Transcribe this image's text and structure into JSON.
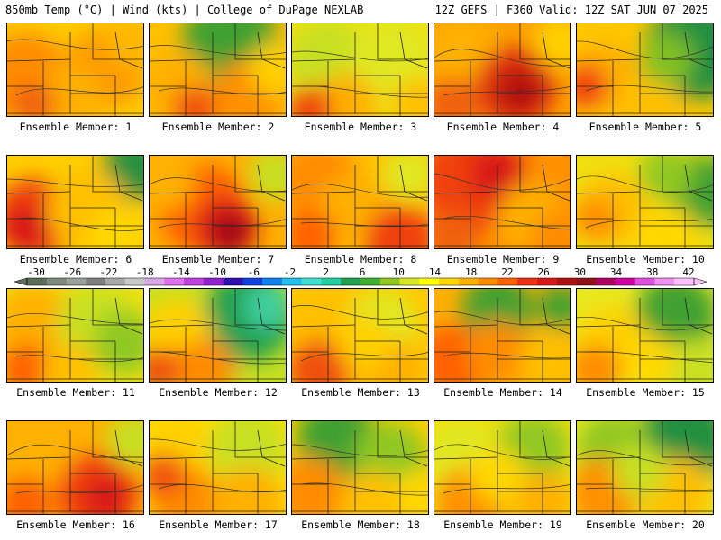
{
  "header": {
    "left": "850mb Temp (°C) | Wind (kts) | College of DuPage NEXLAB",
    "right": "12Z GEFS | F360 Valid: 12Z SAT JUN 07 2025"
  },
  "members": [
    {
      "label": "Ensemble Member: 1"
    },
    {
      "label": "Ensemble Member: 2"
    },
    {
      "label": "Ensemble Member: 3"
    },
    {
      "label": "Ensemble Member: 4"
    },
    {
      "label": "Ensemble Member: 5"
    },
    {
      "label": "Ensemble Member: 6"
    },
    {
      "label": "Ensemble Member: 7"
    },
    {
      "label": "Ensemble Member: 8"
    },
    {
      "label": "Ensemble Member: 9"
    },
    {
      "label": "Ensemble Member: 10"
    },
    {
      "label": "Ensemble Member: 11"
    },
    {
      "label": "Ensemble Member: 12"
    },
    {
      "label": "Ensemble Member: 13"
    },
    {
      "label": "Ensemble Member: 14"
    },
    {
      "label": "Ensemble Member: 15"
    },
    {
      "label": "Ensemble Member: 16"
    },
    {
      "label": "Ensemble Member: 17"
    },
    {
      "label": "Ensemble Member: 18"
    },
    {
      "label": "Ensemble Member: 19"
    },
    {
      "label": "Ensemble Member: 20"
    }
  ],
  "colorbar": {
    "ticks": [
      "-30",
      "-26",
      "-22",
      "-18",
      "-14",
      "-10",
      "-6",
      "-2",
      "2",
      "6",
      "10",
      "14",
      "18",
      "22",
      "26",
      "30",
      "34",
      "38",
      "42"
    ],
    "colors": [
      "#5a6e5a",
      "#7d8a7d",
      "#9aa09a",
      "#7f7f7f",
      "#a8a8a8",
      "#c8c8c8",
      "#d9a8e8",
      "#e070f0",
      "#c040e0",
      "#9020d0",
      "#3010b0",
      "#1040e0",
      "#1080f0",
      "#20c0f0",
      "#40e0d0",
      "#20d0a0",
      "#20a050",
      "#40b030",
      "#90c820",
      "#d8e820",
      "#ffff00",
      "#ffd800",
      "#ffb000",
      "#ff8c00",
      "#ff6000",
      "#f03010",
      "#d81818",
      "#b01010",
      "#901018",
      "#b00060",
      "#d000a0",
      "#e050e0",
      "#f090f0",
      "#ffc0ff"
    ]
  }
}
